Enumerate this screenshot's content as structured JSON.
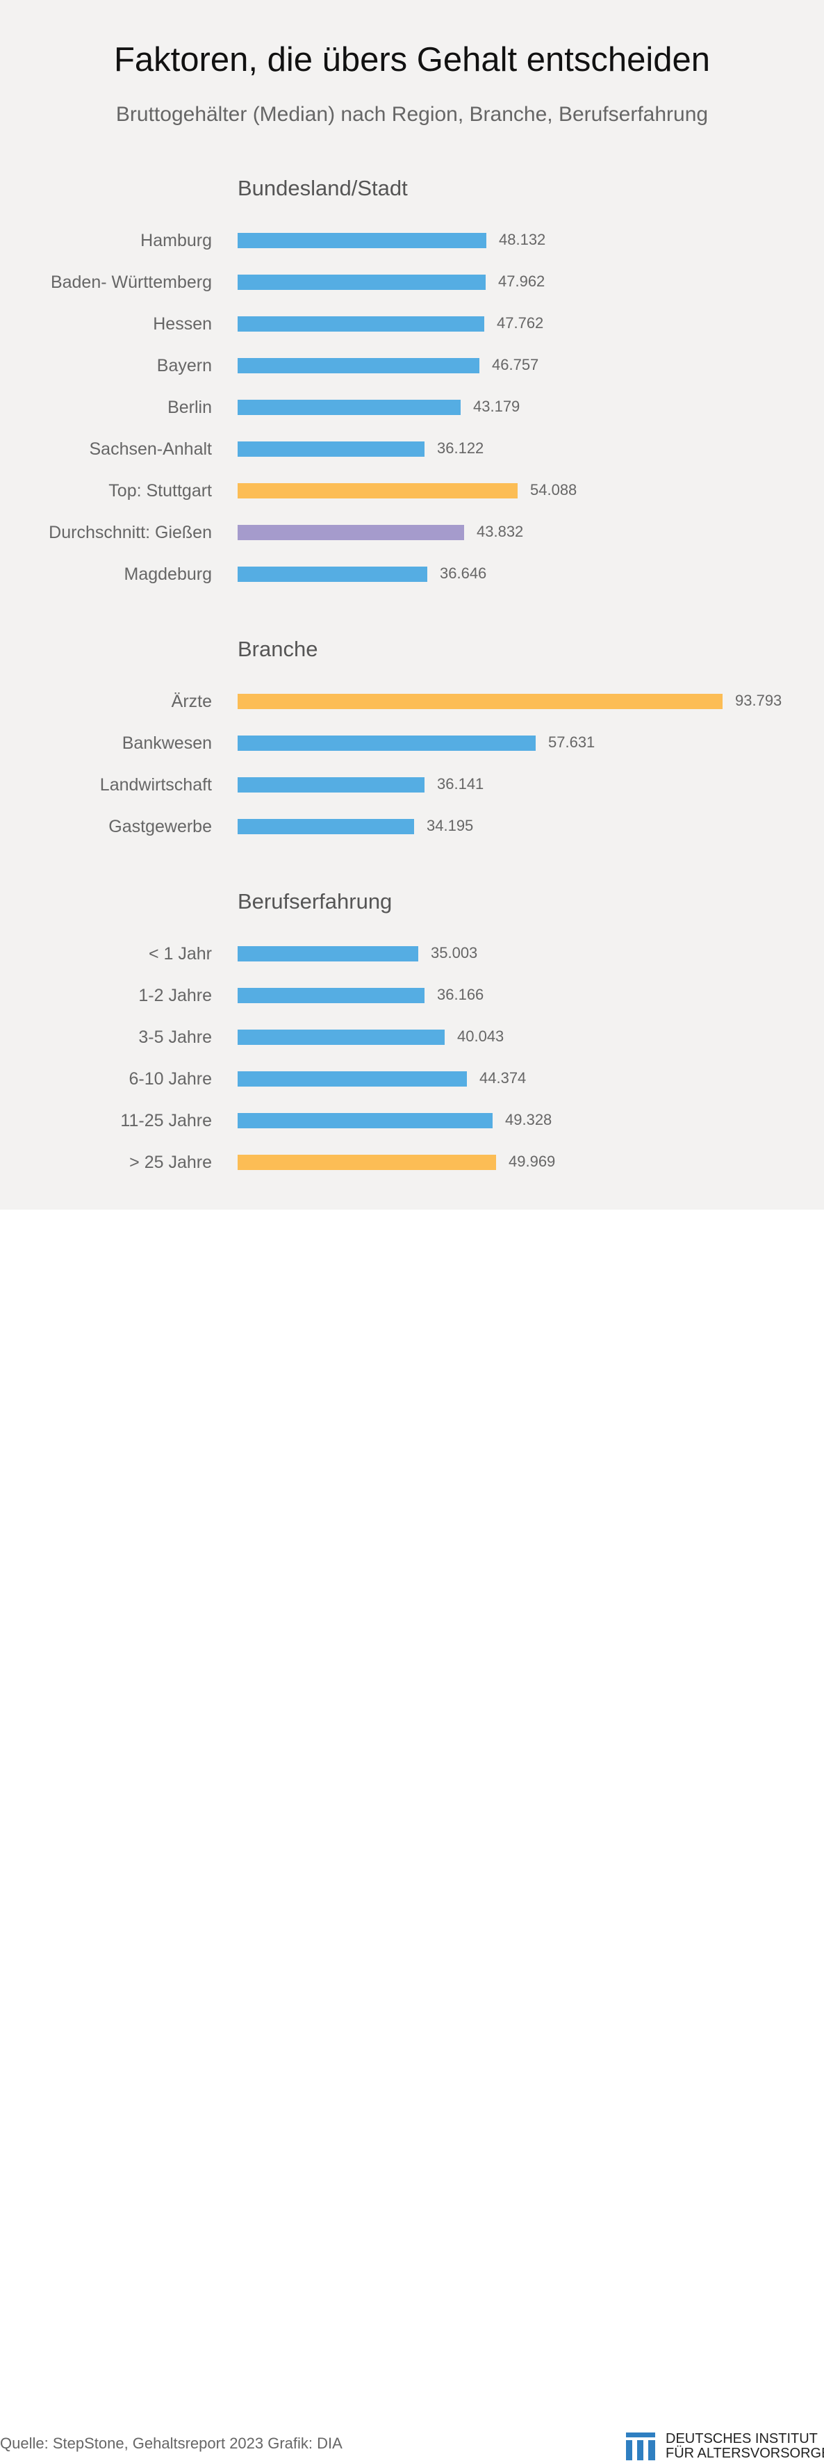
{
  "title": "Faktoren, die übers Gehalt entscheiden",
  "subtitle": "Bruttogehälter (Median) nach Region, Branche, Berufserfahrung",
  "colors": {
    "default": "#55ade3",
    "top": "#fcbd55",
    "average": "#a59bcc"
  },
  "chart_data": {
    "type": "bar",
    "orientation": "horizontal",
    "groups": [
      {
        "heading": "Bundesland/Stadt",
        "items": [
          {
            "label": "Hamburg",
            "value": 48132,
            "value_label": "48.132",
            "highlight": "default"
          },
          {
            "label": "Baden- Württemberg",
            "value": 47962,
            "value_label": "47.962",
            "highlight": "default"
          },
          {
            "label": "Hessen",
            "value": 47762,
            "value_label": "47.762",
            "highlight": "default"
          },
          {
            "label": "Bayern",
            "value": 46757,
            "value_label": "46.757",
            "highlight": "default"
          },
          {
            "label": "Berlin",
            "value": 43179,
            "value_label": "43.179",
            "highlight": "default"
          },
          {
            "label": "Sachsen-Anhalt",
            "value": 36122,
            "value_label": "36.122",
            "highlight": "default"
          },
          {
            "label": "Top: Stuttgart",
            "value": 54088,
            "value_label": "54.088",
            "highlight": "top"
          },
          {
            "label": "Durchschnitt: Gießen",
            "value": 43832,
            "value_label": "43.832",
            "highlight": "average"
          },
          {
            "label": "Magdeburg",
            "value": 36646,
            "value_label": "36.646",
            "highlight": "default"
          }
        ]
      },
      {
        "heading": "Branche",
        "items": [
          {
            "label": "Ärzte",
            "value": 93793,
            "value_label": "93.793",
            "highlight": "top"
          },
          {
            "label": "Bankwesen",
            "value": 57631,
            "value_label": "57.631",
            "highlight": "default"
          },
          {
            "label": "Landwirtschaft",
            "value": 36141,
            "value_label": "36.141",
            "highlight": "default"
          },
          {
            "label": "Gastgewerbe",
            "value": 34195,
            "value_label": "34.195",
            "highlight": "default"
          }
        ]
      },
      {
        "heading": "Berufserfahrung",
        "items": [
          {
            "label": "< 1 Jahr",
            "value": 35003,
            "value_label": "35.003",
            "highlight": "default"
          },
          {
            "label": "1-2 Jahre",
            "value": 36166,
            "value_label": "36.166",
            "highlight": "default"
          },
          {
            "label": "3-5 Jahre",
            "value": 40043,
            "value_label": "40.043",
            "highlight": "default"
          },
          {
            "label": "6-10 Jahre",
            "value": 44374,
            "value_label": "44.374",
            "highlight": "default"
          },
          {
            "label": "11-25 Jahre",
            "value": 49328,
            "value_label": "49.328",
            "highlight": "default"
          },
          {
            "label": "> 25 Jahre",
            "value": 49969,
            "value_label": "49.969",
            "highlight": "top"
          }
        ]
      }
    ],
    "xlim": [
      0,
      93793
    ],
    "grid": false
  },
  "footer": {
    "source": "Quelle: StepStone, Gehaltsreport 2023  Grafik: DIA",
    "logo_line1": "DEUTSCHES INSTITUT",
    "logo_line2": "FÜR ALTERSVORSORGE"
  }
}
